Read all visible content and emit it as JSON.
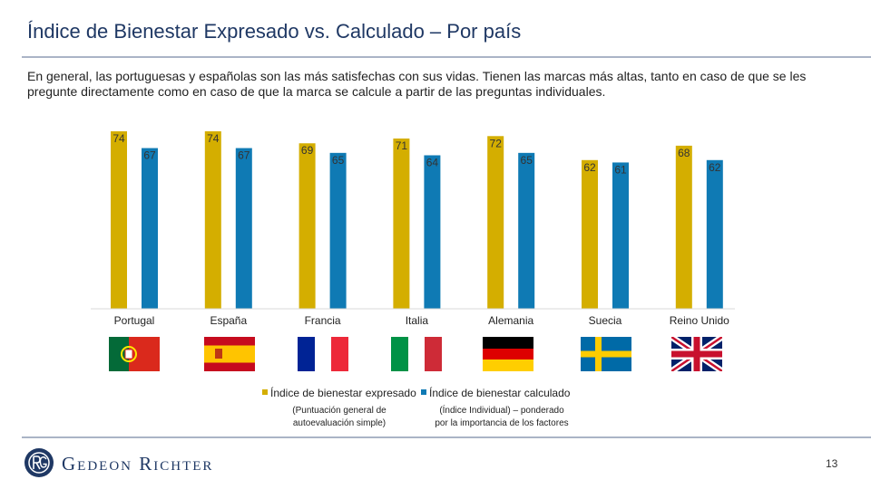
{
  "title": "Índice de Bienestar Expresado vs. Calculado – Por país",
  "subtitle": "En general, las portuguesas y españolas son las más satisfechas con sus vidas. Tienen las marcas más altas, tanto en caso de que se les pregunte directamente como en caso de que la marca se calcule a partir de las preguntas individuales.",
  "colors": {
    "expressed": "#d4ae00",
    "calculated": "#0f7ab4",
    "title": "#1f3864"
  },
  "chart_data": {
    "type": "bar",
    "categories": [
      "Portugal",
      "España",
      "Francia",
      "Italia",
      "Alemania",
      "Suecia",
      "Reino Unido"
    ],
    "series": [
      {
        "name": "Índice de bienestar expresado",
        "note": "(Puntuación general de autoevaluación simple)",
        "values": [
          74,
          74,
          69,
          71,
          72,
          62,
          68
        ]
      },
      {
        "name": "Índice de bienestar calculado",
        "note": "(Índice Individual) – ponderado por la importancia de los factores",
        "values": [
          67,
          67,
          65,
          64,
          65,
          61,
          62
        ]
      }
    ],
    "ylim": [
      0,
      74
    ],
    "legend_position": "bottom-center",
    "grid": false
  },
  "legend": {
    "expressed_note_line1": "(Puntuación general de",
    "expressed_note_line2": "autoevaluación simple)",
    "calculated_note_line1": "(Índice Individual) – ponderado",
    "calculated_note_line2": "por la importancia de los factores"
  },
  "flags": [
    "portugal-flag",
    "spain-flag",
    "france-flag",
    "italy-flag",
    "germany-flag",
    "sweden-flag",
    "uk-flag"
  ],
  "footer": {
    "logo_text": "Gedeon Richter",
    "page_number": "13"
  }
}
